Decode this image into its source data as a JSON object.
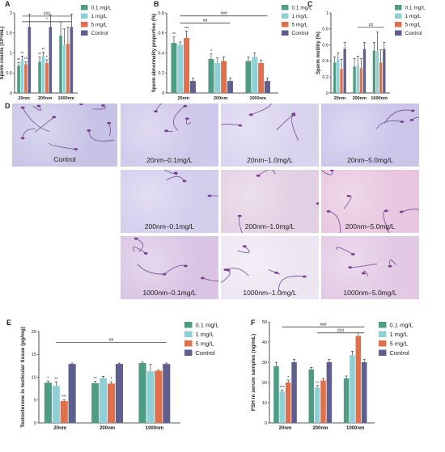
{
  "colors": {
    "c01": "#4f9c84",
    "c1": "#8fd0d6",
    "c5": "#e0704c",
    "ctrl": "#5f5f8f"
  },
  "panelD": {
    "label": "D",
    "images": [
      {
        "caption": "Control",
        "tone": "#c7c3e6"
      },
      {
        "caption": "20nm–0.1mg/L",
        "tone": "#cfc8ea"
      },
      {
        "caption": "20nm–1.0mg/L",
        "tone": "#d9d3ee"
      },
      {
        "caption": "20nm–5.0mg/L",
        "tone": "#cbc5ea"
      },
      {
        "caption": "200nm–0.1mg/L",
        "tone": "#d3cdec"
      },
      {
        "caption": "200nm–1.0mg/L",
        "tone": "#e3cfe3"
      },
      {
        "caption": "200nm–5.0mg/L",
        "tone": "#e8c6df"
      },
      {
        "caption": "1000nm–0.1mg/L",
        "tone": "#d9c4e4"
      },
      {
        "caption": "1000nm–1.0mg/L",
        "tone": "#ece6f2"
      },
      {
        "caption": "1000nm–5.0mg/L",
        "tone": "#e2c9e4"
      }
    ]
  },
  "chart_data": [
    {
      "panel": "A",
      "type": "bar",
      "ylabel": "Sperm counts (10⁹/mL)",
      "categories": [
        "20nm",
        "200nm",
        "1000nm"
      ],
      "ylim": [
        0,
        2.0
      ],
      "yticks": [
        0,
        0.5,
        1.0,
        1.5,
        2.0
      ],
      "legend_position": "right",
      "series": [
        {
          "name": "0.1 mg/L",
          "values": [
            0.68,
            0.78,
            1.43
          ],
          "errors": [
            0.08,
            0.12,
            0.35
          ],
          "marks": [
            "**",
            "**",
            ""
          ]
        },
        {
          "name": "1 mg/L",
          "values": [
            0.82,
            0.92,
            1.2
          ],
          "errors": [
            0.1,
            0.1,
            0.4
          ],
          "marks": [
            "**",
            "**",
            ""
          ]
        },
        {
          "name": "5 mg/L",
          "values": [
            0.72,
            0.75,
            1.23
          ],
          "errors": [
            0.06,
            0.08,
            0.42
          ],
          "marks": [
            "**",
            "*",
            ""
          ]
        },
        {
          "name": "Control",
          "values": [
            1.65,
            1.65,
            1.65
          ],
          "errors": [
            0.32,
            0.3,
            0.32
          ],
          "marks": [
            "",
            "",
            ""
          ]
        }
      ],
      "brackets": [
        {
          "from": 0,
          "to": 2,
          "label": "###",
          "y": 1.92
        },
        {
          "from": 0,
          "to": 2,
          "label": "*",
          "y": 1.78
        }
      ]
    },
    {
      "panel": "B",
      "type": "bar",
      "ylabel": "Sperm abnormality proportion (%)",
      "categories": [
        "20nm",
        "200nm",
        "1000nm"
      ],
      "ylim": [
        0,
        0.8
      ],
      "yticks": [
        0,
        0.2,
        0.4,
        0.6,
        0.8
      ],
      "legend_position": "right",
      "series": [
        {
          "name": "0.1 mg/L",
          "values": [
            0.5,
            0.34,
            0.32
          ],
          "errors": [
            0.06,
            0.05,
            0.04
          ],
          "marks": [
            "**",
            "*",
            ""
          ]
        },
        {
          "name": "1 mg/L",
          "values": [
            0.48,
            0.3,
            0.36
          ],
          "errors": [
            0.03,
            0.05,
            0.04
          ],
          "marks": [
            "",
            "",
            ""
          ]
        },
        {
          "name": "5 mg/L",
          "values": [
            0.55,
            0.32,
            0.3
          ],
          "errors": [
            0.07,
            0.04,
            0.03
          ],
          "marks": [
            "***",
            "",
            ""
          ]
        },
        {
          "name": "Control",
          "values": [
            0.12,
            0.12,
            0.12
          ],
          "errors": [
            0.03,
            0.03,
            0.03
          ],
          "marks": [
            "",
            "",
            ""
          ]
        }
      ],
      "brackets": [
        {
          "from": 0,
          "to": 2,
          "label": "###",
          "y": 0.77
        },
        {
          "from": 0,
          "to": 1,
          "label": "##",
          "y": 0.7
        }
      ]
    },
    {
      "panel": "C",
      "type": "bar",
      "ylabel": "Sperm motility (%)",
      "categories": [
        "20nm",
        "200nm",
        "1000nm"
      ],
      "ylim": [
        0,
        1.0
      ],
      "yticks": [
        0,
        0.2,
        0.4,
        0.6,
        0.8,
        1.0
      ],
      "legend_position": "right",
      "series": [
        {
          "name": "0.1 mg/L",
          "values": [
            0.38,
            0.33,
            0.53
          ],
          "errors": [
            0.07,
            0.1,
            0.1
          ],
          "marks": [
            "",
            "",
            ""
          ]
        },
        {
          "name": "1 mg/L",
          "values": [
            0.42,
            0.34,
            0.52
          ],
          "errors": [
            0.08,
            0.12,
            0.24
          ],
          "marks": [
            "",
            "",
            ""
          ]
        },
        {
          "name": "5 mg/L",
          "values": [
            0.3,
            0.31,
            0.38
          ],
          "errors": [
            0.12,
            0.12,
            0.16
          ],
          "marks": [
            "",
            "",
            ""
          ]
        },
        {
          "name": "Control",
          "values": [
            0.55,
            0.55,
            0.55
          ],
          "errors": [
            0.08,
            0.08,
            0.08
          ],
          "marks": [
            "",
            "",
            ""
          ]
        }
      ],
      "brackets": [
        {
          "from": 1,
          "to": 2,
          "label": "##",
          "y": 0.82
        }
      ]
    },
    {
      "panel": "E",
      "type": "bar",
      "ylabel": "Testosterone in testicular tissue (pg/mg)",
      "categories": [
        "20nm",
        "200nm",
        "1000nm"
      ],
      "ylim": [
        0,
        20
      ],
      "yticks": [
        0,
        5,
        10,
        15,
        20
      ],
      "legend_position": "right",
      "series": [
        {
          "name": "0.1 mg/L",
          "values": [
            8.8,
            8.7,
            13.1
          ],
          "errors": [
            0.4,
            0.4,
            0.2
          ],
          "marks": [
            "*",
            "**",
            ""
          ]
        },
        {
          "name": "1 mg/L",
          "values": [
            8.1,
            9.8,
            11.3
          ],
          "errors": [
            0.9,
            0.4,
            1.5
          ],
          "marks": [
            "**",
            "",
            ""
          ]
        },
        {
          "name": "5 mg/L",
          "values": [
            4.8,
            8.6,
            11.4
          ],
          "errors": [
            0.3,
            0.4,
            0.2
          ],
          "marks": [
            "***",
            "*",
            ""
          ]
        },
        {
          "name": "Control",
          "values": [
            12.9,
            12.9,
            12.9
          ],
          "errors": [
            0.2,
            0.2,
            0.2
          ],
          "marks": [
            "",
            "",
            ""
          ]
        }
      ],
      "brackets": [
        {
          "from": 0,
          "to": 2,
          "label": "##",
          "y": 17.6
        }
      ]
    },
    {
      "panel": "F",
      "type": "bar",
      "ylabel": "FSH in serum samples (ng/mL)",
      "categories": [
        "20nm",
        "200nm",
        "1000nm"
      ],
      "ylim": [
        0,
        50
      ],
      "yticks": [
        0,
        10,
        20,
        30,
        40,
        50
      ],
      "legend_position": "right",
      "series": [
        {
          "name": "0.1 mg/L",
          "values": [
            28,
            26.5,
            22
          ],
          "errors": [
            2.0,
            1.0,
            1.2
          ],
          "marks": [
            "",
            "",
            ""
          ]
        },
        {
          "name": "1 mg/L",
          "values": [
            15.5,
            17.5,
            33.5
          ],
          "errors": [
            0.8,
            1.0,
            2.0
          ],
          "marks": [
            "***",
            "**",
            ""
          ]
        },
        {
          "name": "5 mg/L",
          "values": [
            20,
            21,
            43
          ],
          "errors": [
            1.2,
            1.0,
            1.5
          ],
          "marks": [
            "*",
            "",
            ""
          ]
        },
        {
          "name": "Control",
          "values": [
            30,
            30,
            30
          ],
          "errors": [
            1.5,
            1.5,
            1.5
          ],
          "marks": [
            "",
            "",
            ""
          ]
        }
      ],
      "brackets": [
        {
          "from": 0,
          "to": 2,
          "label": "###",
          "y": 47.5
        },
        {
          "from": 1,
          "to": 2,
          "label": "###",
          "y": 44.5
        }
      ]
    }
  ]
}
